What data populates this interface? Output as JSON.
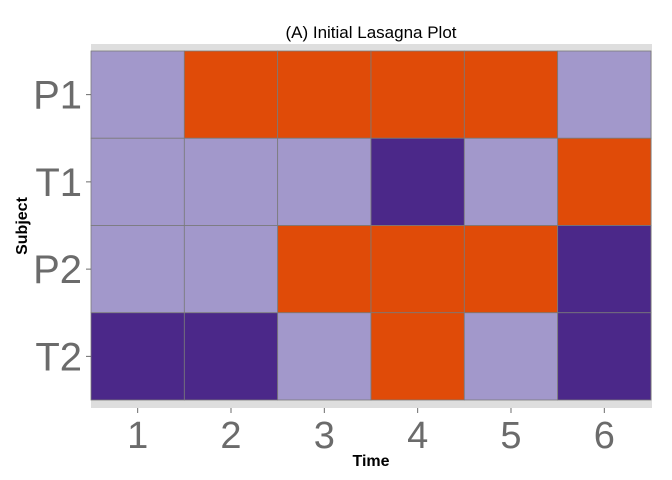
{
  "chart_data": {
    "type": "heatmap",
    "title": "(A)  Initial Lasagna Plot",
    "xlabel": "Time",
    "ylabel": "Subject",
    "x": [
      "1",
      "2",
      "3",
      "4",
      "5",
      "6"
    ],
    "y": [
      "P1",
      "T1",
      "P2",
      "T2"
    ],
    "values": [
      [
        2,
        3,
        3,
        3,
        3,
        2
      ],
      [
        2,
        2,
        2,
        1,
        2,
        3
      ],
      [
        2,
        2,
        3,
        3,
        3,
        1
      ],
      [
        1,
        1,
        2,
        3,
        2,
        1
      ]
    ],
    "colors": {
      "1": "#4b2889",
      "2": "#a298cb",
      "3": "#e04b08"
    },
    "grid": true
  }
}
